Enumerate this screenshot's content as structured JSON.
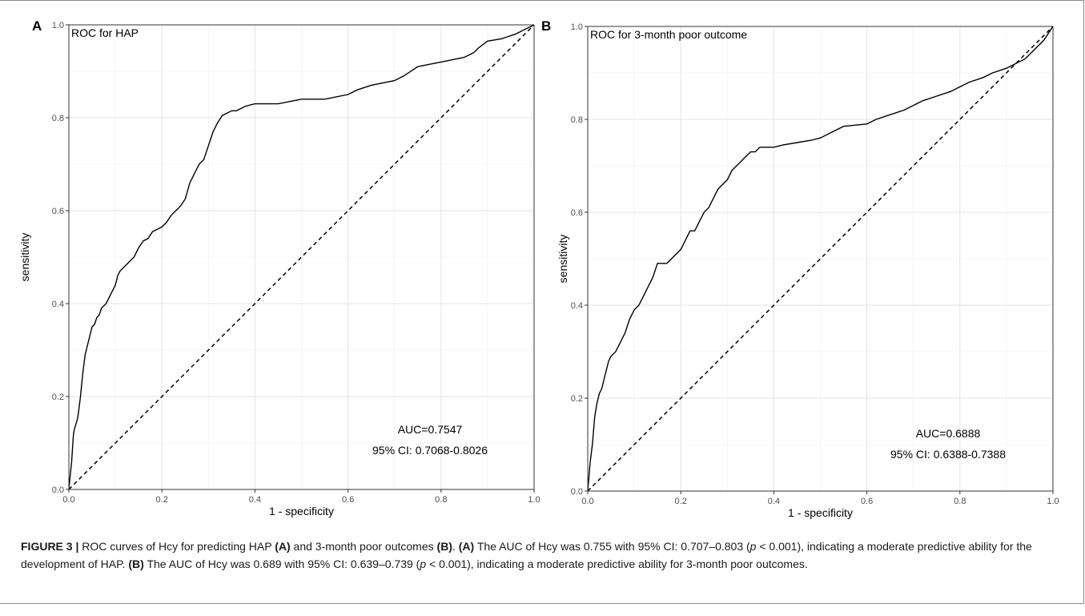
{
  "chart_data": [
    {
      "panel_label": "A",
      "type": "line",
      "title": "ROC for HAP",
      "xlabel": "1 - specificity",
      "ylabel": "sensitivity",
      "xlim": [
        0,
        1
      ],
      "ylim": [
        0,
        1
      ],
      "xticks": [
        "0.0",
        "0.2",
        "0.4",
        "0.6",
        "0.8",
        "1.0"
      ],
      "yticks": [
        "0.0",
        "0.2",
        "0.4",
        "0.6",
        "0.8",
        "1.0"
      ],
      "grid": true,
      "annotation_lines": [
        "AUC=0.7547",
        "95% CI: 0.7068-0.8026"
      ],
      "series": [
        {
          "line_style": "solid",
          "x": [
            0,
            0.003,
            0.006,
            0.008,
            0.01,
            0.012,
            0.015,
            0.018,
            0.02,
            0.025,
            0.03,
            0.035,
            0.04,
            0.045,
            0.05,
            0.055,
            0.06,
            0.065,
            0.07,
            0.075,
            0.08,
            0.09,
            0.1,
            0.105,
            0.11,
            0.12,
            0.13,
            0.14,
            0.15,
            0.16,
            0.17,
            0.18,
            0.19,
            0.2,
            0.21,
            0.22,
            0.23,
            0.24,
            0.25,
            0.26,
            0.27,
            0.28,
            0.29,
            0.3,
            0.31,
            0.32,
            0.33,
            0.34,
            0.35,
            0.36,
            0.37,
            0.38,
            0.4,
            0.42,
            0.45,
            0.5,
            0.52,
            0.55,
            0.6,
            0.62,
            0.65,
            0.7,
            0.72,
            0.75,
            0.8,
            0.85,
            0.87,
            0.88,
            0.9,
            0.93,
            0.96,
            0.98,
            1.0
          ],
          "y": [
            0,
            0.03,
            0.06,
            0.09,
            0.12,
            0.13,
            0.14,
            0.15,
            0.16,
            0.2,
            0.25,
            0.29,
            0.31,
            0.33,
            0.35,
            0.355,
            0.37,
            0.375,
            0.39,
            0.395,
            0.4,
            0.42,
            0.44,
            0.46,
            0.47,
            0.48,
            0.49,
            0.5,
            0.52,
            0.535,
            0.54,
            0.555,
            0.56,
            0.565,
            0.575,
            0.59,
            0.6,
            0.61,
            0.625,
            0.66,
            0.68,
            0.7,
            0.71,
            0.74,
            0.77,
            0.79,
            0.805,
            0.81,
            0.815,
            0.815,
            0.82,
            0.825,
            0.83,
            0.83,
            0.83,
            0.84,
            0.84,
            0.84,
            0.85,
            0.86,
            0.87,
            0.88,
            0.89,
            0.91,
            0.92,
            0.93,
            0.94,
            0.95,
            0.965,
            0.97,
            0.98,
            0.99,
            1.0
          ]
        },
        {
          "line_style": "dashed",
          "x": [
            0,
            1
          ],
          "y": [
            0,
            1
          ]
        }
      ]
    },
    {
      "panel_label": "B",
      "type": "line",
      "title": "ROC for 3-month poor outcome",
      "xlabel": "1 - specificity",
      "ylabel": "sensitivity",
      "xlim": [
        0,
        1
      ],
      "ylim": [
        0,
        1
      ],
      "xticks": [
        "0.0",
        "0.2",
        "0.4",
        "0.6",
        "0.8",
        "1.0"
      ],
      "yticks": [
        "0.0",
        "0.2",
        "0.4",
        "0.6",
        "0.8",
        "1.0"
      ],
      "grid": true,
      "annotation_lines": [
        "AUC=0.6888",
        "95% CI: 0.6388-0.7388"
      ],
      "series": [
        {
          "line_style": "solid",
          "x": [
            0,
            0.005,
            0.01,
            0.015,
            0.02,
            0.025,
            0.03,
            0.035,
            0.04,
            0.045,
            0.05,
            0.06,
            0.07,
            0.08,
            0.09,
            0.1,
            0.11,
            0.12,
            0.13,
            0.14,
            0.15,
            0.16,
            0.17,
            0.18,
            0.2,
            0.21,
            0.22,
            0.23,
            0.24,
            0.25,
            0.26,
            0.27,
            0.28,
            0.29,
            0.3,
            0.31,
            0.32,
            0.33,
            0.34,
            0.35,
            0.36,
            0.37,
            0.38,
            0.4,
            0.42,
            0.45,
            0.48,
            0.5,
            0.52,
            0.55,
            0.6,
            0.62,
            0.65,
            0.68,
            0.7,
            0.72,
            0.75,
            0.78,
            0.8,
            0.82,
            0.85,
            0.87,
            0.9,
            0.92,
            0.94,
            0.96,
            0.98,
            1.0
          ],
          "y": [
            0,
            0.06,
            0.1,
            0.16,
            0.19,
            0.21,
            0.22,
            0.24,
            0.26,
            0.28,
            0.29,
            0.3,
            0.32,
            0.34,
            0.37,
            0.39,
            0.4,
            0.42,
            0.44,
            0.46,
            0.49,
            0.49,
            0.49,
            0.5,
            0.52,
            0.54,
            0.56,
            0.56,
            0.58,
            0.6,
            0.61,
            0.63,
            0.65,
            0.66,
            0.67,
            0.69,
            0.7,
            0.71,
            0.72,
            0.73,
            0.73,
            0.74,
            0.74,
            0.74,
            0.745,
            0.75,
            0.755,
            0.76,
            0.77,
            0.785,
            0.79,
            0.8,
            0.81,
            0.82,
            0.83,
            0.84,
            0.85,
            0.86,
            0.87,
            0.88,
            0.89,
            0.9,
            0.91,
            0.92,
            0.93,
            0.95,
            0.97,
            1.0
          ]
        },
        {
          "line_style": "dashed",
          "x": [
            0,
            1
          ],
          "y": [
            0,
            1
          ]
        }
      ]
    }
  ],
  "caption": {
    "fig_label": "FIGURE 3 |",
    "t1": " ROC curves of Hcy for predicting HAP ",
    "ref_a1": "(A)",
    "t2": " and 3-month poor outcomes ",
    "ref_b1": "(B)",
    "t3": ". ",
    "ref_a2": "(A)",
    "t4": " The AUC of Hcy was 0.755 with 95% CI: 0.707–0.803 (",
    "p1": "p",
    "t5": " < 0.001), indicating a moderate predictive ability for the development of HAP. ",
    "ref_b2": "(B)",
    "t6": " The AUC of Hcy was 0.689 with 95% CI: 0.639–0.739 (",
    "p2": "p",
    "t7": " < 0.001), indicating a moderate predictive ability for 3-month poor outcomes."
  }
}
